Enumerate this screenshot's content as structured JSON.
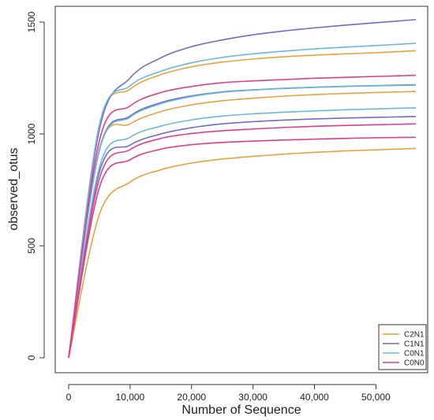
{
  "chart_data": {
    "type": "line",
    "title": "",
    "xlabel": "Number of Sequence",
    "ylabel": "observed_otus",
    "xlim": [
      0,
      57000
    ],
    "ylim": [
      0,
      1500
    ],
    "x_ticks": [
      0,
      10000,
      20000,
      30000,
      40000,
      50000
    ],
    "x_tick_labels": [
      "0",
      "10,000",
      "20,000",
      "30,000",
      "40,000",
      "50,000"
    ],
    "y_ticks": [
      0,
      500,
      1000,
      1500
    ],
    "y_tick_labels": [
      "0",
      "500",
      "1000",
      "1500"
    ],
    "grid": false,
    "legend_position": "bottom-right",
    "legend": [
      {
        "name": "C2N1",
        "color": "#E8A33B"
      },
      {
        "name": "C1N1",
        "color": "#6F6CCB"
      },
      {
        "name": "C0N1",
        "color": "#6BB8DF"
      },
      {
        "name": "C0N0",
        "color": "#E23C8C"
      }
    ],
    "x": [
      0,
      5000,
      10000,
      15000,
      20000,
      25000,
      30000,
      35000,
      40000,
      45000,
      50000,
      56500
    ],
    "series": [
      {
        "name": "C2N1",
        "values": [
          0,
          1040,
          1200,
          1265,
          1300,
          1321,
          1335,
          1345,
          1352,
          1358,
          1363,
          1372
        ]
      },
      {
        "name": "C2N1",
        "values": [
          0,
          930,
          1045,
          1100,
          1130,
          1148,
          1160,
          1169,
          1176,
          1181,
          1185,
          1190
        ]
      },
      {
        "name": "C2N1",
        "values": [
          0,
          640,
          785,
          840,
          870,
          888,
          900,
          910,
          918,
          924,
          929,
          935
        ]
      },
      {
        "name": "C1N1",
        "values": [
          0,
          1020,
          1250,
          1340,
          1390,
          1420,
          1443,
          1460,
          1474,
          1486,
          1497,
          1511
        ]
      },
      {
        "name": "C1N1",
        "values": [
          0,
          930,
          1080,
          1140,
          1170,
          1188,
          1197,
          1204,
          1209,
          1213,
          1216,
          1220
        ]
      },
      {
        "name": "C1N1",
        "values": [
          0,
          830,
          950,
          1000,
          1028,
          1045,
          1055,
          1062,
          1067,
          1071,
          1074,
          1078
        ]
      },
      {
        "name": "C0N1",
        "values": [
          0,
          1040,
          1215,
          1280,
          1318,
          1342,
          1358,
          1370,
          1380,
          1388,
          1395,
          1405
        ]
      },
      {
        "name": "C0N1",
        "values": [
          0,
          925,
          1075,
          1135,
          1167,
          1186,
          1196,
          1203,
          1208,
          1212,
          1215,
          1218
        ]
      },
      {
        "name": "C0N1",
        "values": [
          0,
          850,
          985,
          1035,
          1063,
          1080,
          1090,
          1097,
          1103,
          1108,
          1112,
          1117
        ]
      },
      {
        "name": "C0N0",
        "values": [
          0,
          970,
          1125,
          1185,
          1212,
          1229,
          1237,
          1243,
          1249,
          1253,
          1257,
          1262
        ]
      },
      {
        "name": "C0N0",
        "values": [
          0,
          800,
          930,
          980,
          1002,
          1014,
          1022,
          1029,
          1034,
          1038,
          1041,
          1045
        ]
      },
      {
        "name": "C0N0",
        "values": [
          0,
          760,
          885,
          932,
          952,
          962,
          968,
          973,
          977,
          980,
          983,
          985
        ]
      }
    ]
  }
}
